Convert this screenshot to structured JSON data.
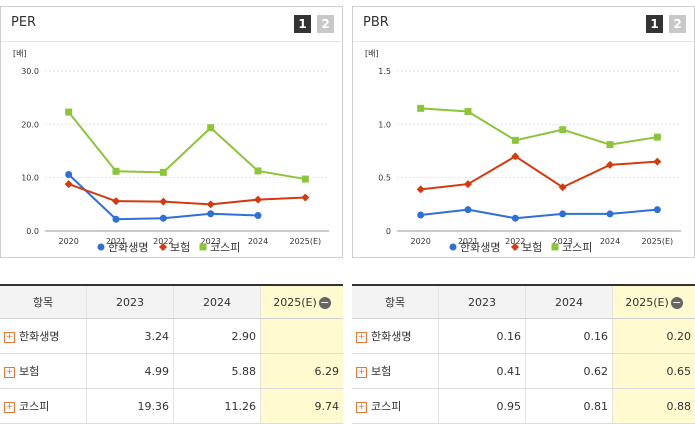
{
  "pager": [
    "1",
    "2"
  ],
  "legend_labels": [
    "한화생명",
    "보험",
    "코스피"
  ],
  "colors": {
    "hanwha": "#2f6fd6",
    "insurance": "#d23a10",
    "kospi": "#8cc43c"
  },
  "table_header": {
    "item": "항목",
    "c2023": "2023",
    "c2024": "2024",
    "c2025": "2025(E)",
    "collapse_icon": "minus-circle-icon"
  },
  "chart_data": [
    {
      "type": "line",
      "title": "PER",
      "ylabel": "[배]",
      "x": [
        "2020",
        "2021",
        "2022",
        "2023",
        "2024",
        "2025(E)"
      ],
      "yticks": [
        "0.0",
        "10.0",
        "20.0",
        "30.0"
      ],
      "ylim": [
        0,
        30
      ],
      "grid": true,
      "legend": "bottom",
      "series": [
        {
          "name": "한화생명",
          "values": [
            10.6,
            2.2,
            2.4,
            3.24,
            2.9,
            null
          ]
        },
        {
          "name": "보험",
          "values": [
            8.8,
            5.6,
            5.5,
            4.99,
            5.88,
            6.29
          ]
        },
        {
          "name": "코스피",
          "values": [
            22.3,
            11.2,
            11.0,
            19.36,
            11.26,
            9.74
          ]
        }
      ],
      "table": [
        {
          "name": "한화생명",
          "v2023": "3.24",
          "v2024": "2.90",
          "v2025": ""
        },
        {
          "name": "보험",
          "v2023": "4.99",
          "v2024": "5.88",
          "v2025": "6.29"
        },
        {
          "name": "코스피",
          "v2023": "19.36",
          "v2024": "11.26",
          "v2025": "9.74"
        }
      ]
    },
    {
      "type": "line",
      "title": "PBR",
      "ylabel": "[배]",
      "x": [
        "2020",
        "2021",
        "2022",
        "2023",
        "2024",
        "2025(E)"
      ],
      "yticks": [
        "0",
        "0.5",
        "1.0",
        "1.5"
      ],
      "ylim": [
        0,
        1.5
      ],
      "grid": true,
      "legend": "bottom",
      "series": [
        {
          "name": "한화생명",
          "values": [
            0.15,
            0.2,
            0.12,
            0.16,
            0.16,
            0.2
          ]
        },
        {
          "name": "보험",
          "values": [
            0.39,
            0.44,
            0.7,
            0.41,
            0.62,
            0.65
          ]
        },
        {
          "name": "코스피",
          "values": [
            1.15,
            1.12,
            0.85,
            0.95,
            0.81,
            0.88
          ]
        }
      ],
      "table": [
        {
          "name": "한화생명",
          "v2023": "0.16",
          "v2024": "0.16",
          "v2025": "0.20"
        },
        {
          "name": "보험",
          "v2023": "0.41",
          "v2024": "0.62",
          "v2025": "0.65"
        },
        {
          "name": "코스피",
          "v2023": "0.95",
          "v2024": "0.81",
          "v2025": "0.88"
        }
      ]
    }
  ]
}
